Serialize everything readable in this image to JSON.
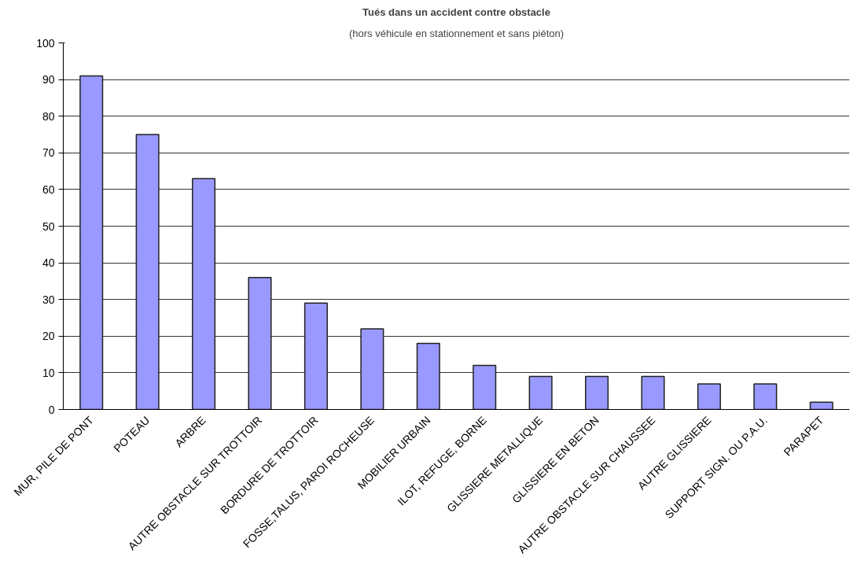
{
  "chart_data": {
    "type": "bar",
    "title": "Tués dans un accident contre obstacle",
    "subtitle": "(hors véhicule en stationnement et sans piéton)",
    "categories": [
      "MUR, PILE DE PONT",
      "POTEAU",
      "ARBRE",
      "AUTRE OBSTACLE SUR TROTTOIR",
      "BORDURE DE TROTTOIR",
      "FOSSE,TALUS, PAROI ROCHEUSE",
      "MOBILIER URBAIN",
      "ILOT, REFUGE, BORNE",
      "GLISSIERE METALLIQUE",
      "GLISSIERE EN BETON",
      "AUTRE OBSTACLE SUR CHAUSSEE",
      "AUTRE GLISSIERE",
      "SUPPORT SIGN. OU P.A.U.",
      "PARAPET"
    ],
    "values": [
      91,
      75,
      63,
      36,
      29,
      22,
      18,
      12,
      9,
      9,
      9,
      7,
      7,
      2
    ],
    "color": "#9999ff",
    "ylim": [
      0,
      100
    ],
    "yticks": [
      0,
      10,
      20,
      30,
      40,
      50,
      60,
      70,
      80,
      90,
      100
    ],
    "grid": "y"
  }
}
